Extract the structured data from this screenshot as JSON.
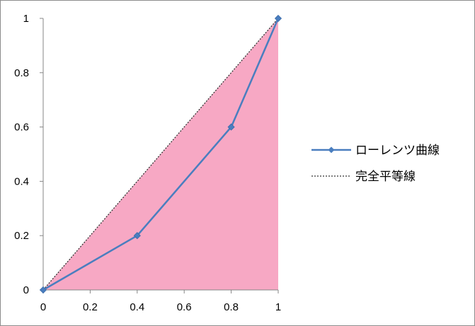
{
  "chart_data": {
    "type": "line",
    "title": "",
    "xlabel": "",
    "ylabel": "",
    "xlim": [
      0,
      1
    ],
    "ylim": [
      0,
      1
    ],
    "grid": false,
    "legend_position": "right",
    "x_ticks": [
      "0",
      "0.2",
      "0.4",
      "0.6",
      "0.8",
      "1"
    ],
    "y_ticks": [
      "0",
      "0.2",
      "0.4",
      "0.6",
      "0.8",
      "1"
    ],
    "series": [
      {
        "name": "ローレンツ曲線",
        "style": "solid-with-diamond-markers",
        "color": "#4a7ebf",
        "x": [
          0,
          0.4,
          0.8,
          1
        ],
        "y": [
          0,
          0.2,
          0.6,
          1
        ]
      },
      {
        "name": "完全平等線",
        "style": "dotted",
        "color": "#333333",
        "x": [
          0,
          1
        ],
        "y": [
          0,
          1
        ]
      }
    ],
    "fill_color": "#f7a8c4"
  }
}
